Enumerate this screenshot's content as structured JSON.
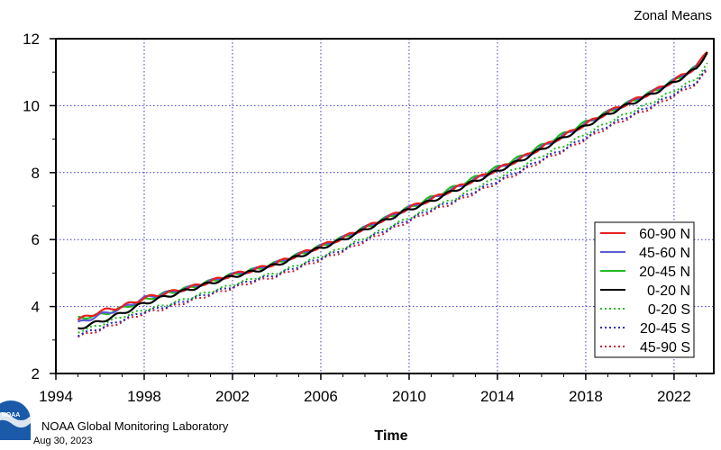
{
  "chart_data": {
    "type": "line",
    "title": "Zonal Means",
    "xlabel": "Time",
    "ylabel": "",
    "xlim": [
      1994,
      2023.8
    ],
    "ylim": [
      2,
      12
    ],
    "x_ticks": [
      1994,
      1998,
      2002,
      2006,
      2010,
      2014,
      2018,
      2022
    ],
    "y_ticks": [
      2,
      4,
      6,
      8,
      10,
      12
    ],
    "grid": true,
    "legend_position": "right",
    "x": [
      1995.0,
      1996.0,
      1997.0,
      1998.0,
      1999.0,
      2000.0,
      2001.0,
      2002.0,
      2003.0,
      2004.0,
      2005.0,
      2006.0,
      2007.0,
      2008.0,
      2009.0,
      2010.0,
      2011.0,
      2012.0,
      2013.0,
      2014.0,
      2015.0,
      2016.0,
      2017.0,
      2018.0,
      2019.0,
      2020.0,
      2021.0,
      2022.0,
      2023.0,
      2023.5
    ],
    "series": [
      {
        "name": "60-90 N",
        "color": "#e8201f",
        "dash": "solid",
        "values": [
          3.6,
          3.85,
          4.0,
          4.25,
          4.4,
          4.55,
          4.75,
          4.95,
          5.1,
          5.3,
          5.55,
          5.8,
          6.05,
          6.35,
          6.65,
          6.95,
          7.2,
          7.5,
          7.8,
          8.1,
          8.4,
          8.75,
          9.1,
          9.45,
          9.8,
          10.1,
          10.4,
          10.75,
          11.15,
          11.6
        ]
      },
      {
        "name": "45-60 N",
        "color": "#5b5bd6",
        "dash": "solid",
        "values": [
          3.5,
          3.75,
          3.95,
          4.25,
          4.4,
          4.55,
          4.75,
          4.95,
          5.1,
          5.3,
          5.55,
          5.8,
          6.05,
          6.35,
          6.65,
          6.95,
          7.2,
          7.5,
          7.8,
          8.1,
          8.4,
          8.75,
          9.1,
          9.45,
          9.8,
          10.1,
          10.4,
          10.75,
          11.15,
          11.6
        ]
      },
      {
        "name": "20-45 N",
        "color": "#22bb22",
        "dash": "solid",
        "values": [
          3.65,
          3.75,
          3.95,
          4.2,
          4.4,
          4.55,
          4.75,
          4.95,
          5.1,
          5.3,
          5.55,
          5.8,
          6.05,
          6.35,
          6.65,
          6.95,
          7.25,
          7.55,
          7.85,
          8.15,
          8.45,
          8.8,
          9.15,
          9.5,
          9.8,
          10.1,
          10.4,
          10.75,
          11.15,
          11.65
        ]
      },
      {
        "name": "0-20 N",
        "color": "#000000",
        "dash": "solid",
        "values": [
          3.35,
          3.55,
          3.8,
          4.1,
          4.3,
          4.5,
          4.7,
          4.9,
          5.05,
          5.25,
          5.5,
          5.75,
          6.0,
          6.3,
          6.6,
          6.9,
          7.15,
          7.45,
          7.75,
          8.05,
          8.35,
          8.7,
          9.05,
          9.4,
          9.75,
          10.05,
          10.35,
          10.7,
          11.1,
          11.6
        ]
      },
      {
        "name": "0-20 S",
        "color": "#22bb22",
        "dash": "dotted",
        "values": [
          3.25,
          3.45,
          3.7,
          3.9,
          4.05,
          4.25,
          4.45,
          4.65,
          4.85,
          5.0,
          5.25,
          5.5,
          5.75,
          6.05,
          6.35,
          6.65,
          6.95,
          7.2,
          7.55,
          7.85,
          8.15,
          8.5,
          8.8,
          9.15,
          9.5,
          9.8,
          10.1,
          10.45,
          10.8,
          11.25
        ]
      },
      {
        "name": "20-45 S",
        "color": "#2a2ab0",
        "dash": "dotted",
        "values": [
          3.15,
          3.35,
          3.6,
          3.85,
          4.0,
          4.2,
          4.4,
          4.6,
          4.8,
          4.95,
          5.2,
          5.45,
          5.7,
          6.0,
          6.3,
          6.6,
          6.9,
          7.15,
          7.45,
          7.75,
          8.05,
          8.4,
          8.7,
          9.05,
          9.4,
          9.7,
          10.0,
          10.35,
          10.7,
          11.1
        ]
      },
      {
        "name": "45-90 S",
        "color": "#c0203a",
        "dash": "dotted",
        "values": [
          3.1,
          3.3,
          3.55,
          3.8,
          3.95,
          4.15,
          4.35,
          4.55,
          4.75,
          4.9,
          5.15,
          5.4,
          5.65,
          5.95,
          6.25,
          6.55,
          6.85,
          7.1,
          7.4,
          7.7,
          8.0,
          8.35,
          8.65,
          9.0,
          9.35,
          9.65,
          9.95,
          10.3,
          10.65,
          11.05
        ]
      }
    ]
  },
  "footer": {
    "org_name": "NOAA Global Monitoring Laboratory",
    "date": "Aug 30, 2023",
    "logo_text": "NOAA"
  }
}
